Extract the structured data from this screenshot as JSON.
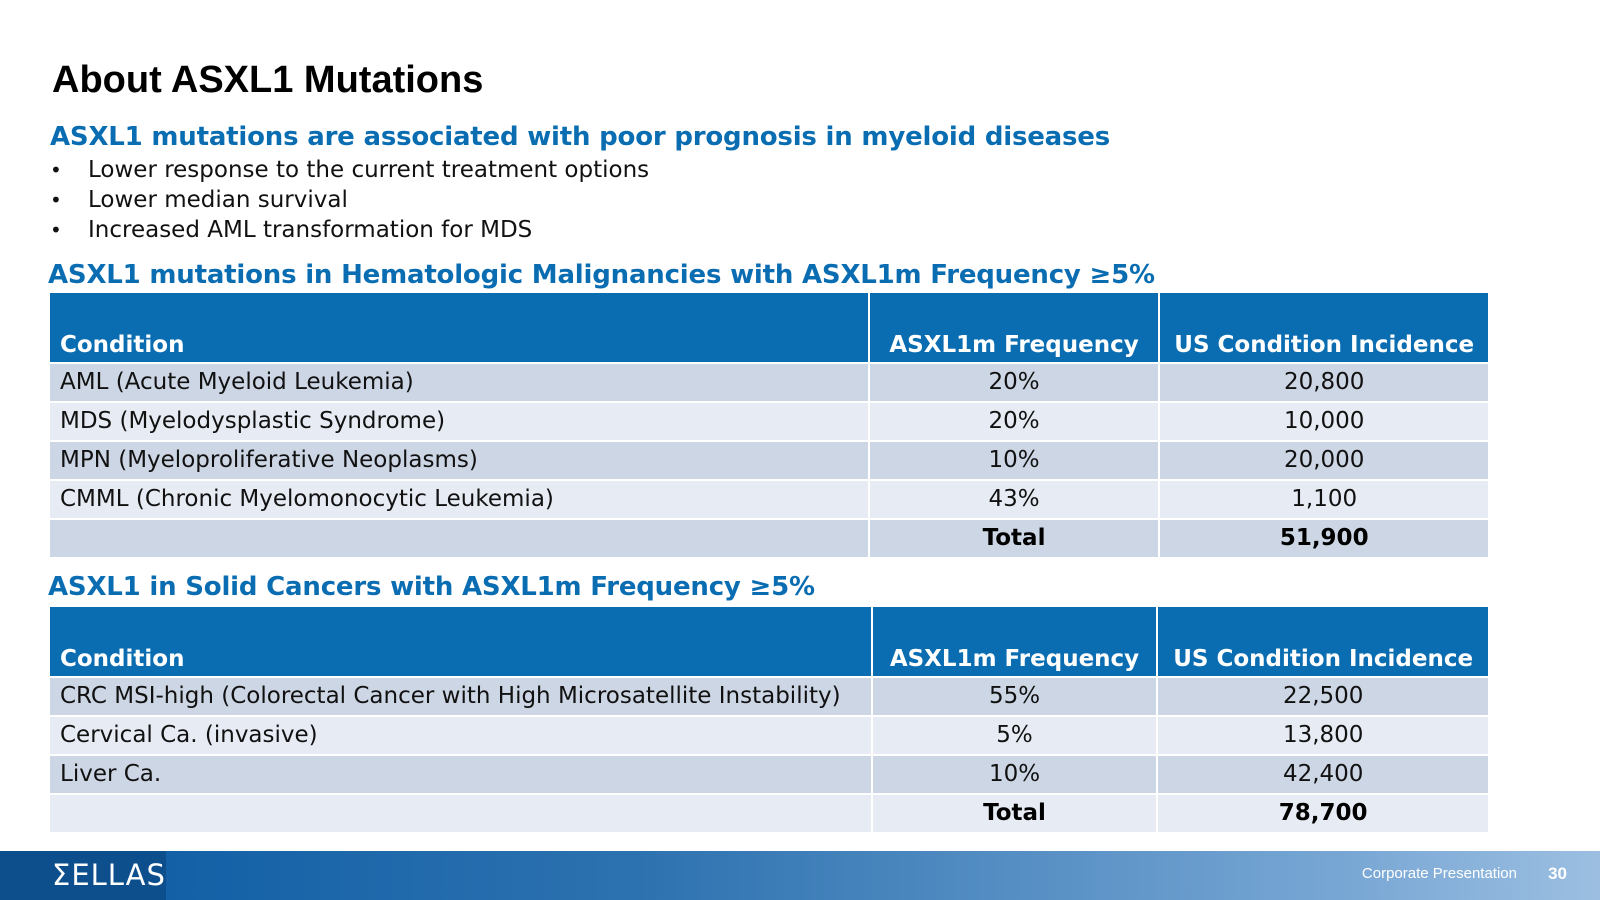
{
  "title": "About ASXL1 Mutations",
  "subheading": "ASXL1 mutations are associated with poor prognosis in myeloid diseases",
  "bullets": [
    "Lower response to the current treatment options",
    "Lower median survival",
    "Increased AML transformation for MDS"
  ],
  "heme_table": {
    "title": "ASXL1 mutations in Hematologic Malignancies with ASXL1m Frequency ≥5%",
    "headers": [
      "Condition",
      "ASXL1m Frequency",
      "US Condition Incidence"
    ],
    "rows": [
      [
        "AML (Acute Myeloid Leukemia)",
        "20%",
        "20,800"
      ],
      [
        "MDS (Myelodysplastic Syndrome)",
        "20%",
        "10,000"
      ],
      [
        "MPN (Myeloproliferative Neoplasms)",
        "10%",
        "20,000"
      ],
      [
        "CMML (Chronic Myelomonocytic Leukemia)",
        "43%",
        "1,100"
      ]
    ],
    "total_label": "Total",
    "total_value": "51,900"
  },
  "solid_table": {
    "title": "ASXL1 in Solid Cancers with ASXL1m Frequency ≥5%",
    "headers": [
      "Condition",
      "ASXL1m Frequency",
      "US Condition Incidence"
    ],
    "rows": [
      [
        "CRC MSI-high (Colorectal Cancer with High Microsatellite Instability)",
        "55%",
        "22,500"
      ],
      [
        "Cervical Ca. (invasive)",
        "5%",
        "13,800"
      ],
      [
        "Liver Ca.",
        "10%",
        "42,400"
      ]
    ],
    "total_label": "Total",
    "total_value": "78,700"
  },
  "footer": {
    "logo_text": "ΣELLAS",
    "label": "Corporate Presentation",
    "page_number": "30"
  },
  "colors": {
    "accent": "#0a6db2",
    "row_dark": "#cdd6e4",
    "row_light": "#e7ecf4"
  }
}
